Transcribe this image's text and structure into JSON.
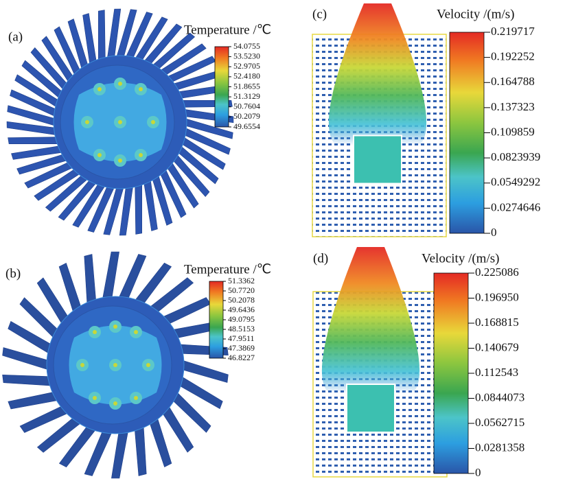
{
  "panels": [
    {
      "label": "(a)",
      "legend_title": "Temperature /℃",
      "legend_labels": [
        "54.0755",
        "53.5230",
        "52.9705",
        "52.4180",
        "51.8655",
        "51.3129",
        "50.7604",
        "50.2079",
        "49.6554"
      ]
    },
    {
      "label": "(b)",
      "legend_title": "Temperature /℃",
      "legend_labels": [
        "51.3362",
        "50.7720",
        "50.2078",
        "49.6436",
        "49.0795",
        "48.5153",
        "47.9511",
        "47.3869",
        "46.8227"
      ]
    },
    {
      "label": "(c)",
      "legend_title": "Velocity /(m/s)",
      "legend_labels": [
        "0.219717",
        "0.192252",
        "0.164788",
        "0.137323",
        "0.109859",
        "0.0823939",
        "0.0549292",
        "0.0274646",
        "0"
      ]
    },
    {
      "label": "(d)",
      "legend_title": "Velocity /(m/s)",
      "legend_labels": [
        "0.225086",
        "0.196950",
        "0.168815",
        "0.140679",
        "0.112543",
        "0.0844073",
        "0.0562715",
        "0.0281358",
        "0"
      ]
    }
  ]
}
